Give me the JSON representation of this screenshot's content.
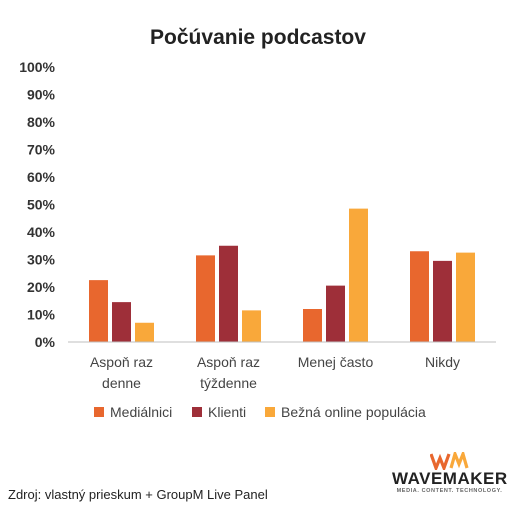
{
  "chart_data": {
    "type": "bar",
    "title": "Počúvanie podcastov",
    "categories": [
      [
        "Aspoň raz",
        "denne"
      ],
      [
        "Aspoň raz",
        "týždenne"
      ],
      [
        "Menej často"
      ],
      [
        "Nikdy"
      ]
    ],
    "series": [
      {
        "name": "Mediálnici",
        "color": "#e8672e",
        "values": [
          22.5,
          31.5,
          12,
          33
        ]
      },
      {
        "name": "Klienti",
        "color": "#9e2f39",
        "values": [
          14.5,
          35,
          20.5,
          29.5
        ]
      },
      {
        "name": "Bežná online populácia",
        "color": "#f9a83a",
        "values": [
          7,
          11.5,
          48.5,
          32.5
        ]
      }
    ],
    "ylim": [
      0,
      100
    ],
    "yticks": [
      "0%",
      "10%",
      "20%",
      "30%",
      "40%",
      "50%",
      "60%",
      "70%",
      "80%",
      "90%",
      "100%"
    ],
    "grid": false,
    "legend_position": "bottom"
  },
  "source_text": "Zdroj: vlastný prieskum + GroupM Live Panel",
  "logo": {
    "name": "WAVEMAKER",
    "tagline": "MEDIA. CONTENT. TECHNOLOGY.",
    "mark_color_1": "#e8672e",
    "mark_color_2": "#f9a83a"
  }
}
